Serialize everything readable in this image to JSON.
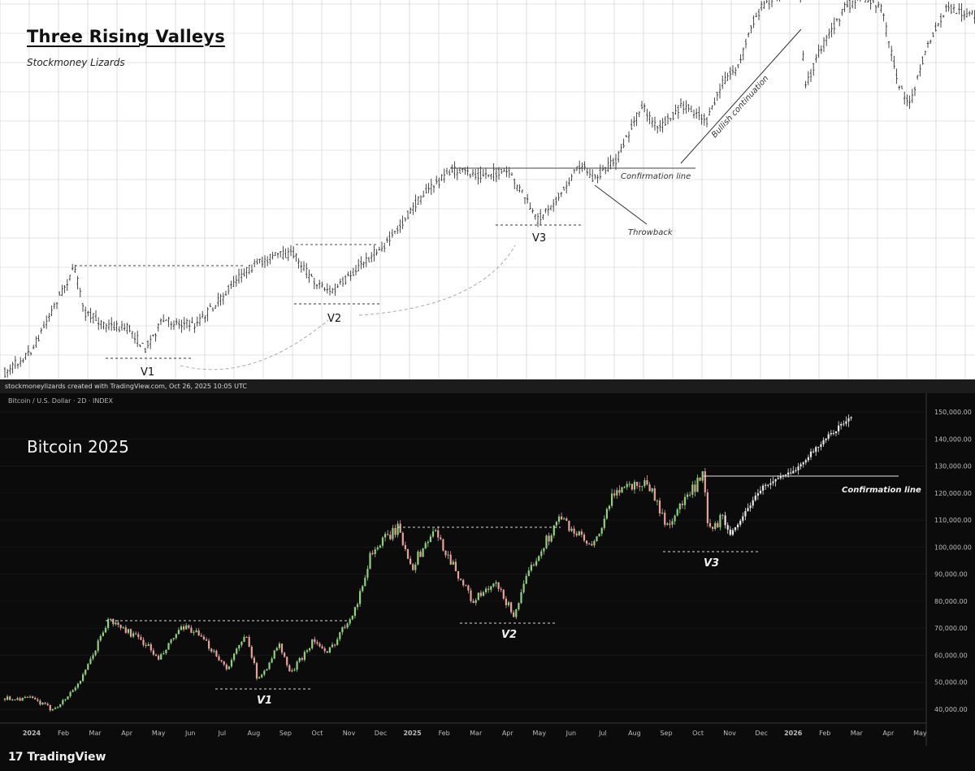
{
  "top": {
    "title": "Three Rising Valleys",
    "subtitle": "Stockmoney Lizards",
    "labels": {
      "v1": "V1",
      "v2": "V2",
      "v3": "V3",
      "confirmation": "Confirmation line",
      "throwback": "Throwback",
      "bullish": "Bullish continuation"
    }
  },
  "credit": "stockmoneylizards created with TradingView.com, Oct 26, 2025 10:05 UTC",
  "bottom": {
    "symbol": "Bitcoin / U.S. Dollar · 2D · INDEX",
    "big_label": "Bitcoin 2025",
    "labels": {
      "v1": "V1",
      "v2": "V2",
      "v3": "V3",
      "confirmation": "Confirmation line"
    }
  },
  "footer": {
    "logo_mark": "17",
    "logo_text": "TradingView"
  },
  "chart_data": {
    "type": "candlestick",
    "title": "Bitcoin 2025",
    "price_axis": [
      "150,000.00",
      "140,000.00",
      "130,000.00",
      "120,000.00",
      "110,000.00",
      "100,000.00",
      "90,000.00",
      "80,000.00",
      "70,000.00",
      "60,000.00",
      "50,000.00",
      "40,000.00"
    ],
    "time_axis": [
      "2024",
      "Feb",
      "Mar",
      "Apr",
      "May",
      "Jun",
      "Jul",
      "Aug",
      "Sep",
      "Oct",
      "Nov",
      "Dec",
      "2025",
      "Feb",
      "Mar",
      "Apr",
      "May",
      "Jun",
      "Jul",
      "Aug",
      "Sep",
      "Oct",
      "Nov",
      "Dec",
      "2026",
      "Feb",
      "Mar",
      "Apr",
      "May"
    ],
    "ylim": [
      40000,
      150000
    ],
    "series": [
      {
        "name": "",
        "type": "candlestick",
        "points": [
          [
            "2024-01",
            44000
          ],
          [
            "2024-01-20",
            40000
          ],
          [
            "2024-02",
            43000
          ],
          [
            "2024-02-20",
            52000
          ],
          [
            "2024-03-10",
            70000
          ],
          [
            "2024-03-14",
            73000
          ],
          [
            "2024-04",
            69000
          ],
          [
            "2024-04-20",
            64000
          ],
          [
            "2024-05-01",
            58000
          ],
          [
            "2024-05-20",
            69000
          ],
          [
            "2024-06",
            70000
          ],
          [
            "2024-06-25",
            61000
          ],
          [
            "2024-07-05",
            55000
          ],
          [
            "2024-07-25",
            68000
          ],
          [
            "2024-08-05",
            50000
          ],
          [
            "2024-08-25",
            64000
          ],
          [
            "2024-09-06",
            53000
          ],
          [
            "2024-09-28",
            66000
          ],
          [
            "2024-10-10",
            60000
          ],
          [
            "2024-10-29",
            72000
          ],
          [
            "2024-11-10",
            80000
          ],
          [
            "2024-11-22",
            98000
          ],
          [
            "2024-12-17",
            107000
          ],
          [
            "2025-01-01",
            93000
          ],
          [
            "2025-01-21",
            106000
          ],
          [
            "2025-02-05",
            97000
          ],
          [
            "2025-02-28",
            80000
          ],
          [
            "2025-03-20",
            86000
          ],
          [
            "2025-04-07",
            75000
          ],
          [
            "2025-04-25",
            94000
          ],
          [
            "2025-05-21",
            111000
          ],
          [
            "2025-06-22",
            99000
          ],
          [
            "2025-07-14",
            122000
          ],
          [
            "2025-08-14",
            124000
          ],
          [
            "2025-09-01",
            108000
          ],
          [
            "2025-10-06",
            126000
          ],
          [
            "2025-10-11",
            105000
          ],
          [
            "2025-10-25",
            111000
          ],
          [
            "2025-11",
            104000
          ],
          [
            "2025-12",
            122000
          ],
          [
            "2026-01",
            128000
          ],
          [
            "2026-02",
            140000
          ],
          [
            "2026-03",
            150000
          ]
        ]
      }
    ],
    "annotations": [
      "V1",
      "V2",
      "V3",
      "Confirmation line"
    ],
    "levels": [
      {
        "label": "",
        "value": 73000
      },
      {
        "label": "",
        "value": 107500
      },
      {
        "label": "Confirmation line",
        "value": 126000
      }
    ]
  },
  "colors": {
    "up": "#8fd27a",
    "down": "#e6a39a",
    "proj": "#e8e8e8",
    "top_candle": "#333333",
    "grid_top": "#c9c9c9"
  }
}
